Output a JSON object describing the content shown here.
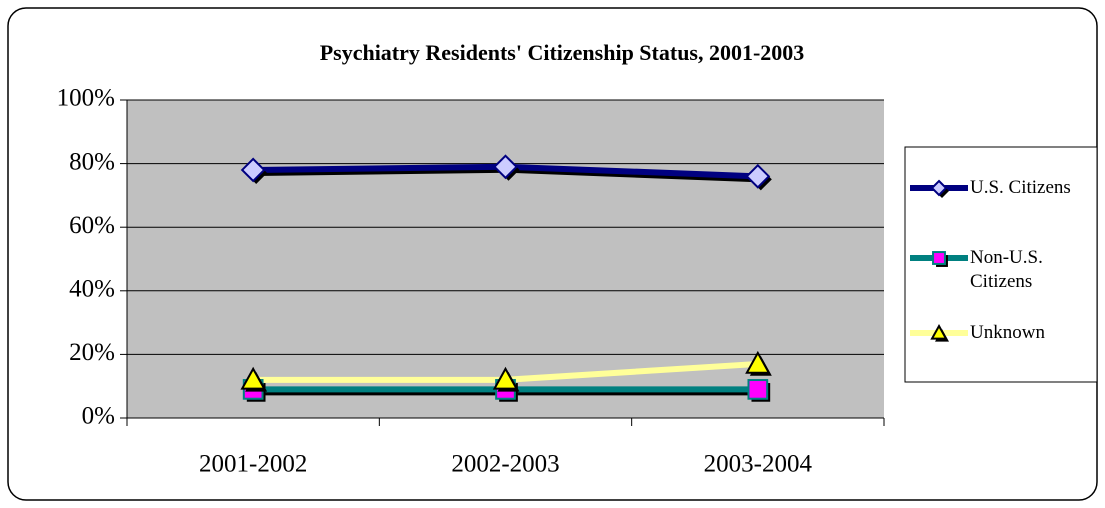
{
  "chart_data": {
    "type": "line",
    "title": "Psychiatry Residents' Citizenship Status, 2001-2003",
    "categories": [
      "2001-2002",
      "2002-2003",
      "2003-2004"
    ],
    "series": [
      {
        "name": "U.S. Citizens",
        "color": "#000080",
        "marker_color": "#ccccff",
        "marker": "diamond",
        "values": [
          78,
          79,
          76
        ]
      },
      {
        "name": "Non-U.S. Citizens",
        "color": "#008080",
        "marker_color": "#ff00ff",
        "marker": "square",
        "values": [
          9,
          9,
          9
        ]
      },
      {
        "name": "Unknown",
        "color": "#ffff99",
        "marker_color": "#ffff00",
        "marker": "triangle",
        "values": [
          12,
          12,
          17
        ]
      }
    ],
    "ylim": [
      0,
      100
    ],
    "yticks": [
      {
        "value": 0,
        "label": "0%"
      },
      {
        "value": 20,
        "label": "20%"
      },
      {
        "value": 40,
        "label": "40%"
      },
      {
        "value": 60,
        "label": "60%"
      },
      {
        "value": 80,
        "label": "80%"
      },
      {
        "value": 100,
        "label": "100%"
      }
    ],
    "grid": true,
    "legend": "right",
    "plot_color": "#c0c0c0"
  }
}
